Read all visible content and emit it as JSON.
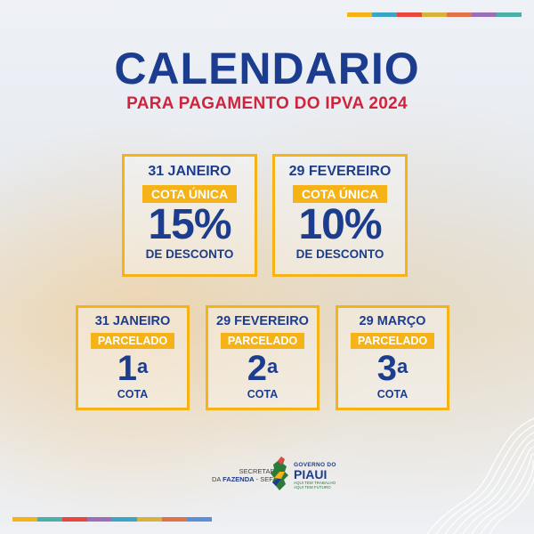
{
  "colors": {
    "primary_blue": "#1c3d8f",
    "accent_red": "#d0243c",
    "accent_yellow": "#f5b317",
    "stripe": [
      "#f5b317",
      "#3aa5c4",
      "#e9463f",
      "#d6b33a",
      "#e0734a",
      "#9a6fb8",
      "#4cb0a8",
      "#e8a642",
      "#5b8fd6"
    ]
  },
  "header": {
    "title": "CALENDARIO",
    "subtitle": "PARA PAGAMENTO DO IPVA 2024"
  },
  "cards_top": [
    {
      "date": "31 JANEIRO",
      "label": "COTA ÚNICA",
      "value": "15%",
      "desc": "DE DESCONTO"
    },
    {
      "date": "29 FEVEREIRO",
      "label": "COTA ÚNICA",
      "value": "10%",
      "desc": "DE DESCONTO"
    }
  ],
  "cards_bottom": [
    {
      "date": "31 JANEIRO",
      "label": "PARCELADO",
      "ordinal": "1",
      "ordinal_suffix": "a",
      "desc": "COTA"
    },
    {
      "date": "29 FEVEREIRO",
      "label": "PARCELADO",
      "ordinal": "2",
      "ordinal_suffix": "a",
      "desc": "COTA"
    },
    {
      "date": "29 MARÇO",
      "label": "PARCELADO",
      "ordinal": "3",
      "ordinal_suffix": "a",
      "desc": "COTA"
    }
  ],
  "footer": {
    "secretaria_line1": "SECRETARIA",
    "secretaria_line2_prefix": "DA",
    "secretaria_line2_bold": "FAZENDA",
    "secretaria_line2_suffix": "- SEFAZ",
    "gov_line": "GOVERNO DO",
    "state_name": "PIAUI",
    "tagline1": "AQUI TEM TRABALHO",
    "tagline2": "AQUI TEM FUTURO",
    "logo_icon": "piaui-map-icon"
  }
}
